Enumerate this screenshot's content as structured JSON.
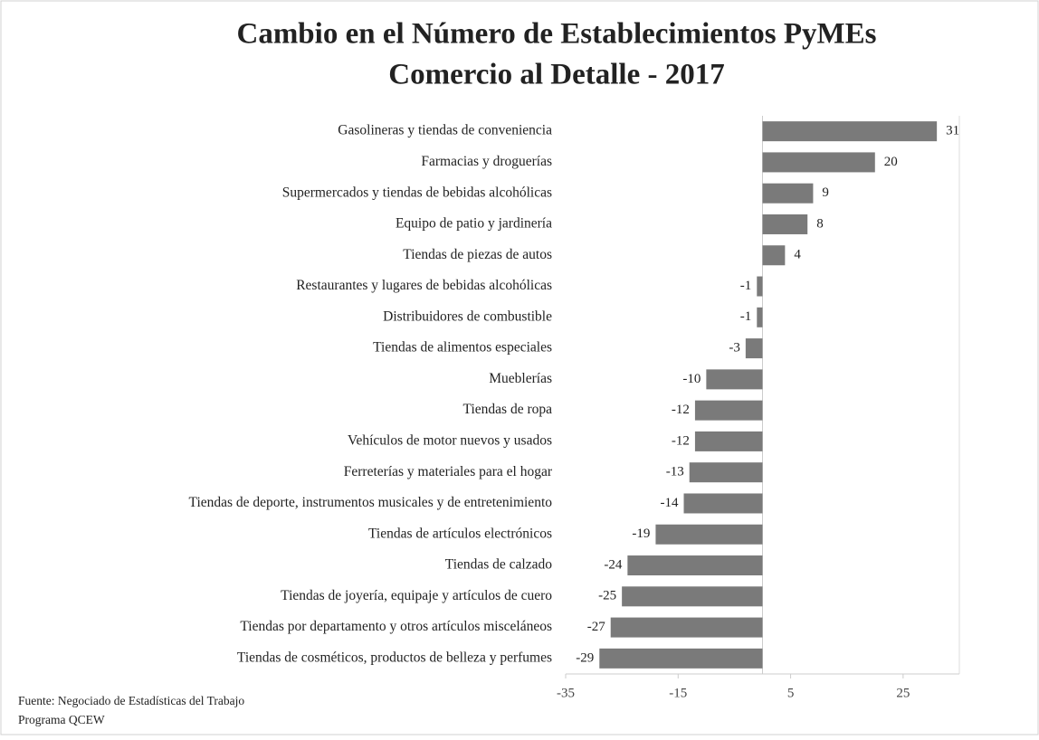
{
  "chart_data": {
    "type": "hbar",
    "title": "Cambio en el Número de Establecimientos PyMEs",
    "subtitle": "Comercio al Detalle - 2017",
    "categories": [
      "Gasolineras y tiendas de conveniencia",
      "Farmacias y droguerías",
      "Supermercados y tiendas de bebidas alcohólicas",
      "Equipo de patio y jardinería",
      "Tiendas de piezas de autos",
      "Restaurantes y lugares de bebidas alcohólicas",
      "Distribuidores de combustible",
      "Tiendas de alimentos especiales",
      "Mueblerías",
      "Tiendas de ropa",
      "Vehículos de motor nuevos y usados",
      "Ferreterías y materiales para el hogar",
      "Tiendas de deporte, instrumentos musicales y de entretenimiento",
      "Tiendas de artículos electrónicos",
      "Tiendas de calzado",
      "Tiendas de joyería, equipaje y artículos de cuero",
      "Tiendas por departamento y otros artículos misceláneos",
      "Tiendas de cosméticos, productos de belleza y perfumes"
    ],
    "values": [
      31,
      20,
      9,
      8,
      4,
      -1,
      -1,
      -3,
      -10,
      -12,
      -12,
      -13,
      -14,
      -19,
      -24,
      -25,
      -27,
      -29
    ],
    "color": "#7a7a7a",
    "xlim": [
      -35,
      35
    ],
    "xticks": [
      -35,
      -15,
      5,
      25
    ],
    "source": [
      "Fuente: Negociado de Estadísticas del Trabajo",
      "Programa QCEW"
    ]
  }
}
